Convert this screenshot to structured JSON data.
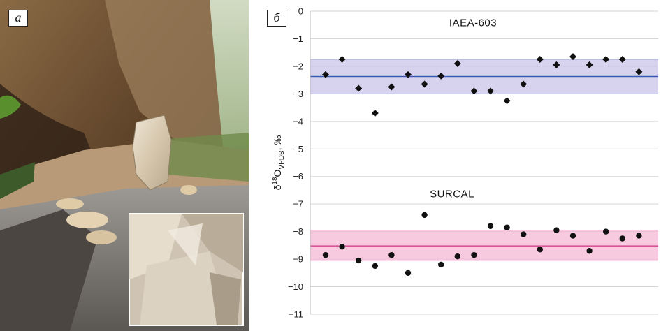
{
  "panel_a": {
    "tag": "а",
    "description_icon": "cave-photo"
  },
  "panel_b": {
    "tag": "б"
  },
  "chart_data": {
    "type": "scatter",
    "ylabel": "δ18OVPDB, ‰",
    "ylabel_parts": {
      "delta": "δ",
      "sup": "18",
      "main": "O",
      "sub": "VPDB",
      "unit": ", ‰"
    },
    "ylim": [
      -11,
      0
    ],
    "yticks": [
      0,
      -1,
      -2,
      -3,
      -4,
      -5,
      -6,
      -7,
      -8,
      -9,
      -10,
      -11
    ],
    "grid": true,
    "annotations": [
      "IAEA-603",
      "SURCAL"
    ],
    "series": [
      {
        "name": "IAEA-603",
        "marker": "diamond",
        "color": "#111111",
        "reference": -2.37,
        "band": [
          -3.0,
          -1.75
        ],
        "band_color": "#c9c4ea",
        "line_color": "#3b5bb0",
        "values": [
          -2.3,
          -1.75,
          -2.8,
          -3.7,
          -2.75,
          -2.3,
          -2.65,
          -2.35,
          -1.9,
          -2.9,
          -2.9,
          -3.25,
          -2.65,
          -1.75,
          -1.95,
          -1.65,
          -1.95,
          -1.75,
          -1.75,
          -2.2
        ]
      },
      {
        "name": "SURCAL",
        "marker": "circle",
        "color": "#111111",
        "reference": -8.52,
        "band": [
          -9.05,
          -7.95
        ],
        "band_color": "#f4b8d6",
        "line_color": "#d9569a",
        "values": [
          -8.85,
          -8.55,
          -9.05,
          -9.25,
          -8.85,
          -9.5,
          -7.4,
          -9.2,
          -8.9,
          -8.85,
          -7.8,
          -7.85,
          -8.1,
          -8.65,
          -7.95,
          -8.15,
          -8.7,
          -8.0,
          -8.25,
          -8.15
        ]
      }
    ]
  }
}
